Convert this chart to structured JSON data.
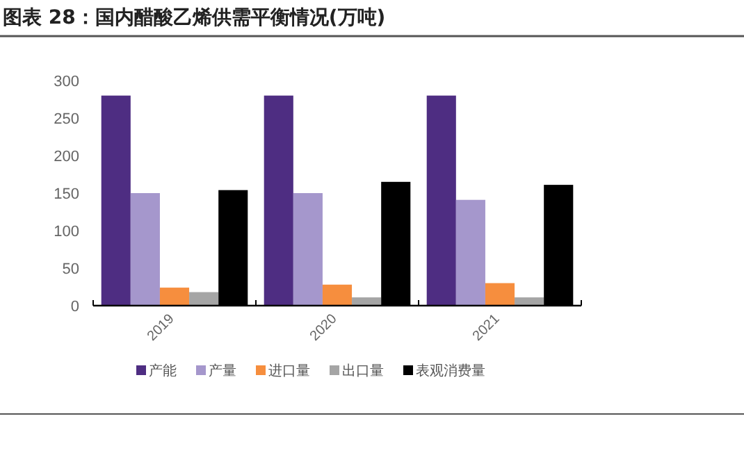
{
  "chart_data": {
    "type": "bar",
    "title": "图表 28：国内醋酸乙烯供需平衡情况(万吨)",
    "categories": [
      "2019",
      "2020",
      "2021"
    ],
    "series": [
      {
        "name": "产能",
        "color": "#4e2d82",
        "values": [
          280,
          280,
          280
        ]
      },
      {
        "name": "产量",
        "color": "#a597cc",
        "values": [
          150,
          150,
          141
        ]
      },
      {
        "name": "进口量",
        "color": "#f68e3e",
        "values": [
          24,
          28,
          30
        ]
      },
      {
        "name": "出口量",
        "color": "#a5a5a5",
        "values": [
          18,
          11,
          11
        ]
      },
      {
        "name": "表观消费量",
        "color": "#000000",
        "values": [
          154,
          165,
          161
        ]
      }
    ],
    "ylim": [
      0,
      300
    ],
    "yticks": [
      0,
      50,
      100,
      150,
      200,
      250,
      300
    ],
    "grid": false,
    "legend": "bottom"
  }
}
